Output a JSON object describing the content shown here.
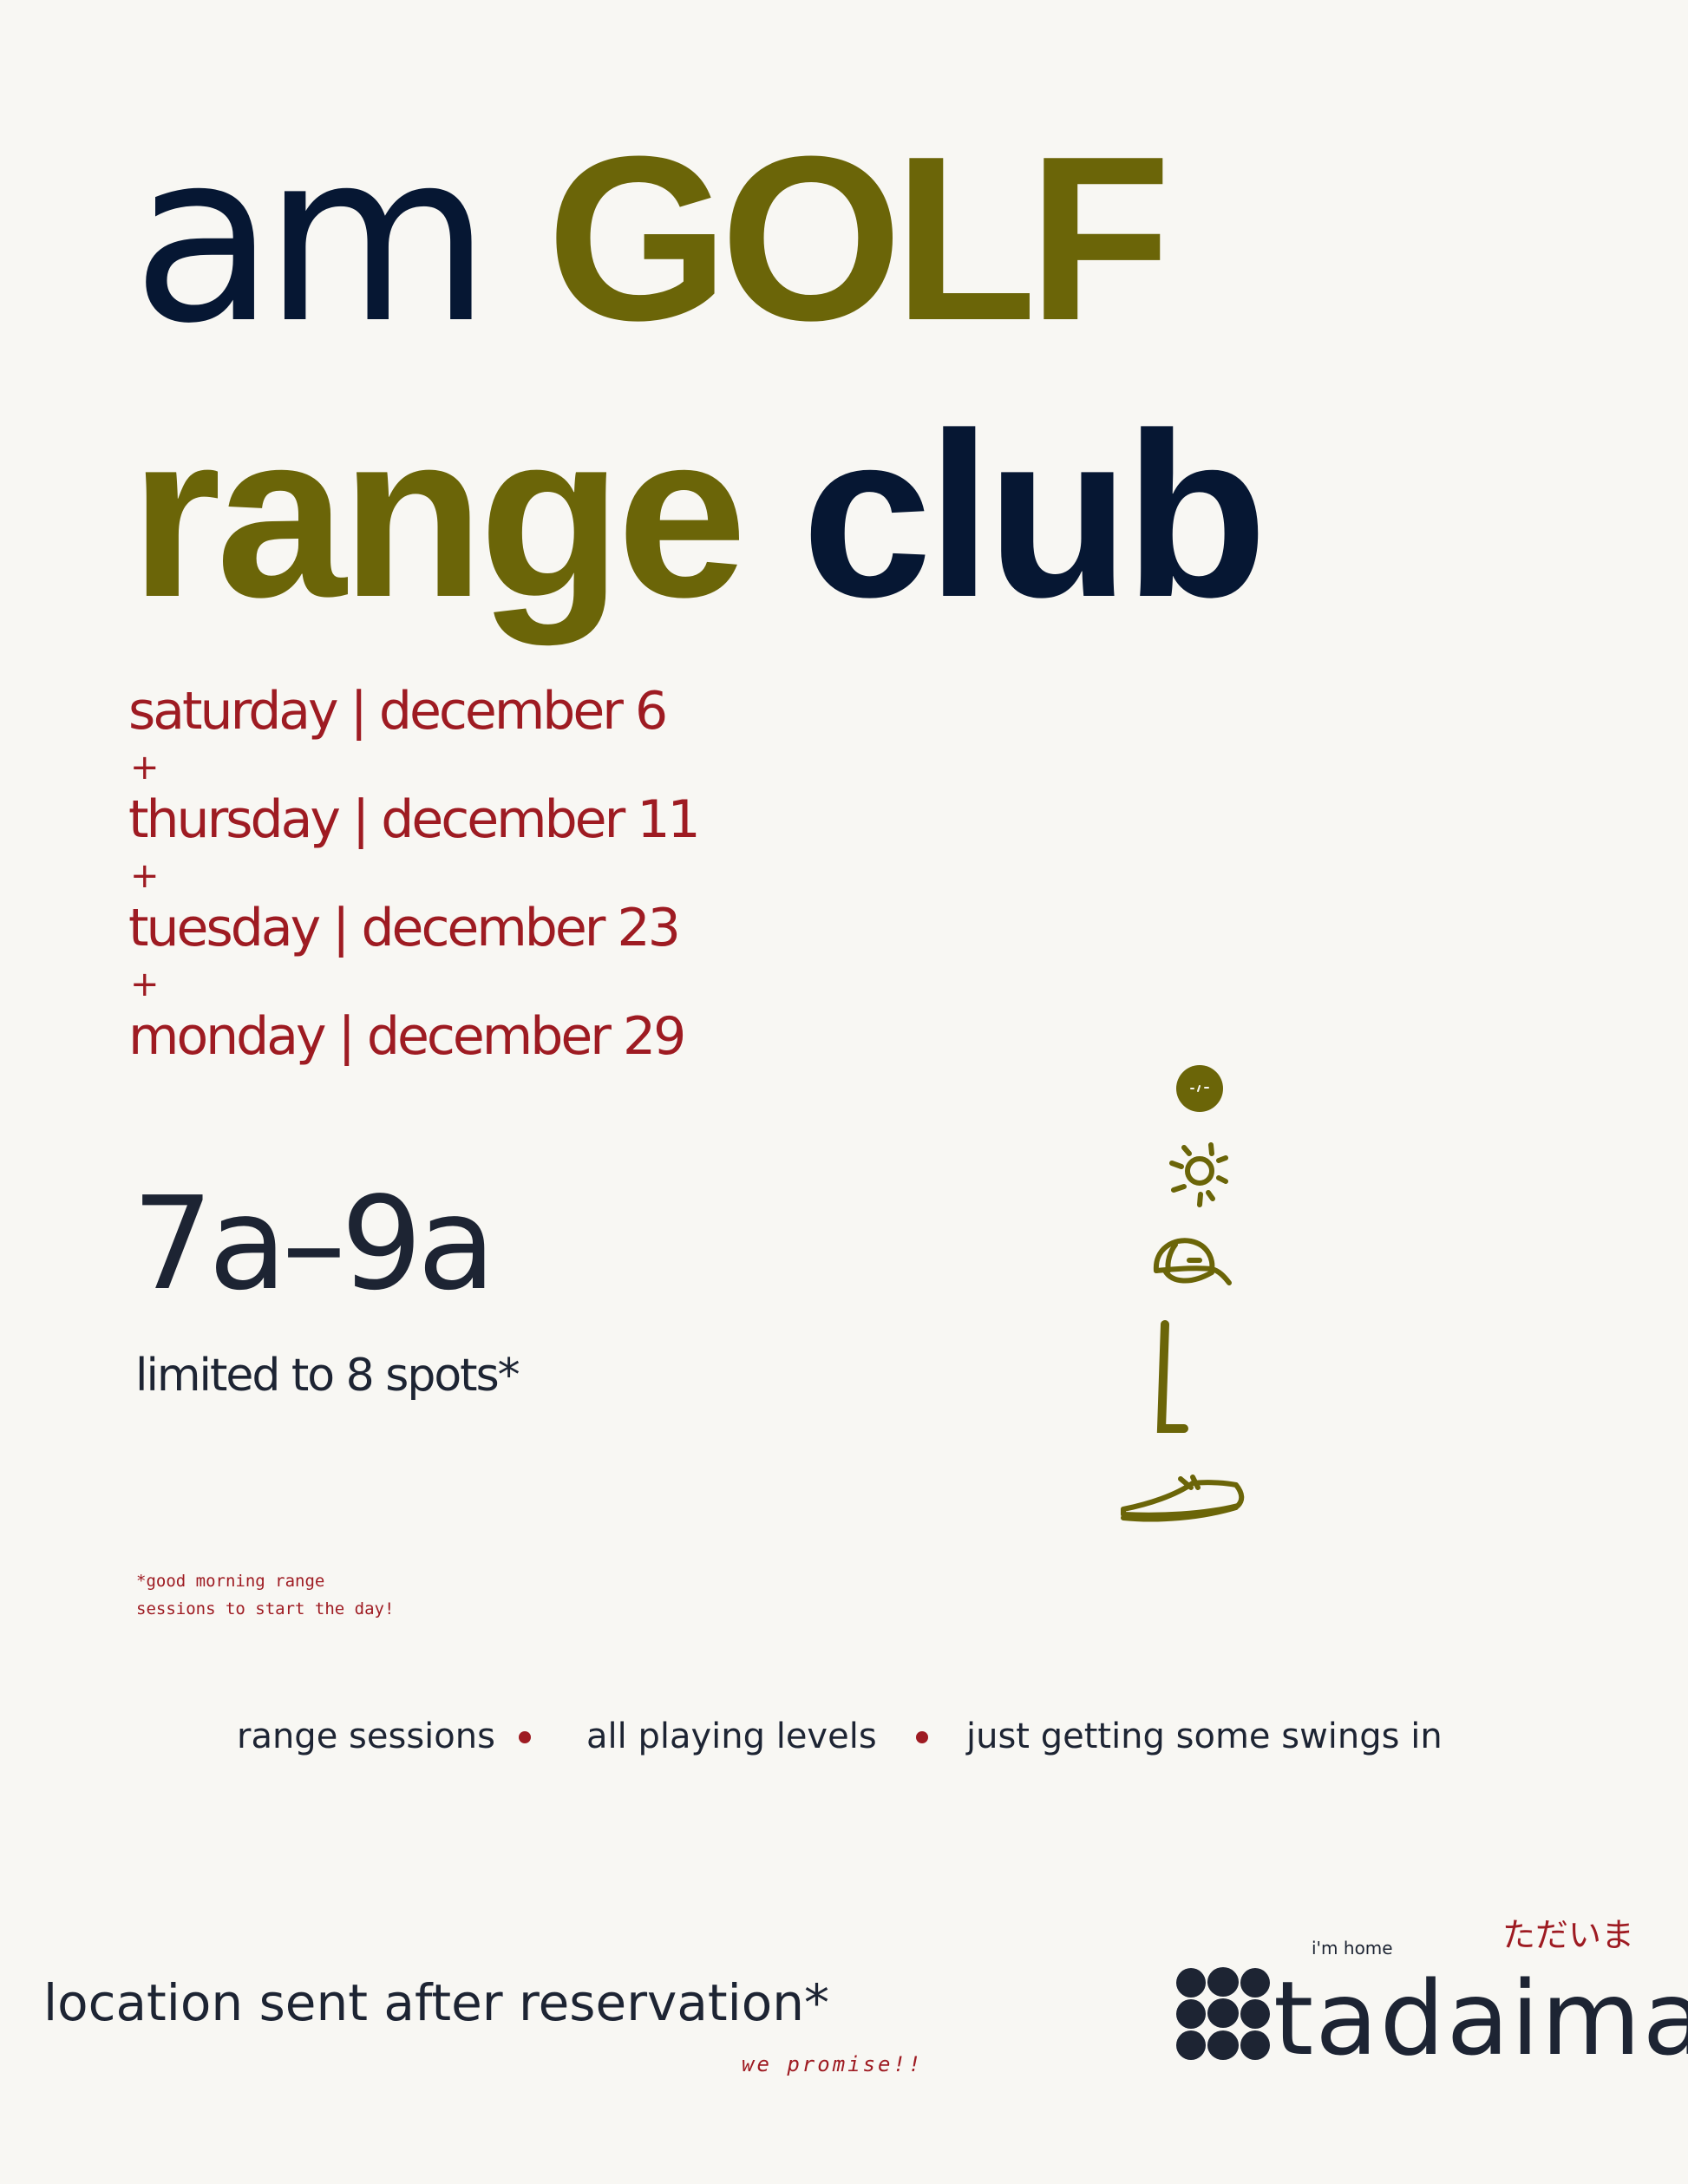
{
  "title": {
    "am": "am",
    "golf": "GOLF",
    "range": "range",
    "club": "club"
  },
  "dates": [
    "saturday | december 6",
    "thursday | december 11",
    "tuesday | december 23",
    "monday | december 29"
  ],
  "separator": "+",
  "time": "7a–9a",
  "limited": "limited to 8 spots*",
  "footnote": {
    "line1": "*good morning range",
    "line2": "sessions to start the day!"
  },
  "tags": [
    "range sessions",
    "all playing levels",
    "just getting some swings in"
  ],
  "location": "location sent after reservation*",
  "promise": "we promise!!",
  "logo": {
    "tagline": "i'm home",
    "name": "tadaima",
    "japanese": "ただいま"
  },
  "icons": [
    "face-icon",
    "sun-icon",
    "cap-icon",
    "golf-club-icon",
    "shoe-icon"
  ],
  "colors": {
    "navy": "#061733",
    "olive": "#6b6508",
    "red": "#9e1b22",
    "background": "#f8f7f3"
  }
}
